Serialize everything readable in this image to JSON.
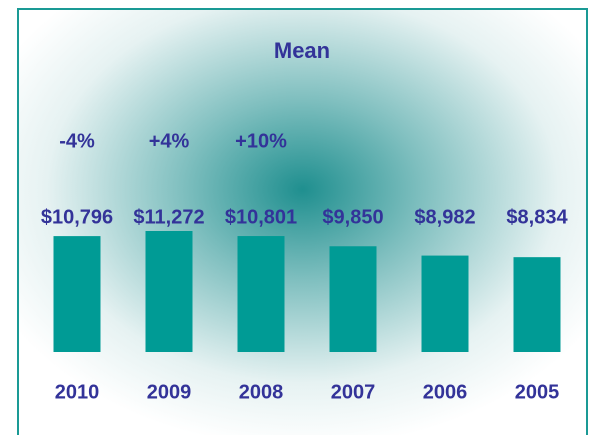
{
  "chart_data": {
    "type": "bar",
    "title": "Mean",
    "categories": [
      "2010",
      "2009",
      "2008",
      "2007",
      "2006",
      "2005"
    ],
    "values": [
      10796,
      11272,
      10801,
      9850,
      8982,
      8834
    ],
    "value_labels": [
      "$10,796",
      "$11,272",
      "$10,801",
      "$9,850",
      "$8,982",
      "$8,834"
    ],
    "annotations": [
      "-4%",
      "+4%",
      "+10%"
    ],
    "color": "#009b95"
  }
}
